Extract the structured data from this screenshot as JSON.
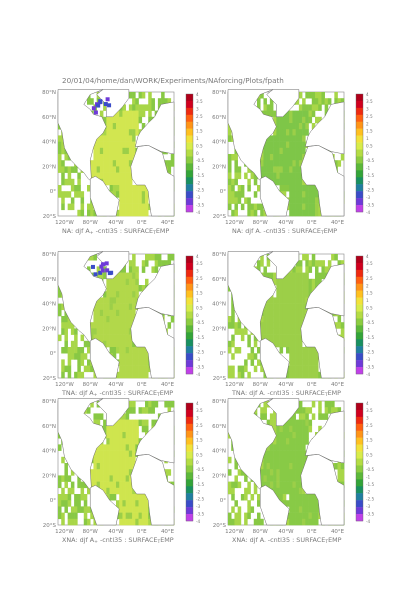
{
  "header": {
    "path": "20/01/04/home/dan/WORK/Experiments/NAforcing/Plots/fpath"
  },
  "axes": {
    "lat_labels": [
      "80°N",
      "60°N",
      "40°N",
      "20°N",
      "0°",
      "20°S"
    ],
    "lon_labels": [
      "120°W",
      "80°W",
      "40°W",
      "0°E",
      "40°E"
    ]
  },
  "colorbar": {
    "ticks": [
      "4",
      "3.5",
      "3",
      "2.5",
      "2",
      "1.5",
      "1",
      "0.5",
      "0",
      "-0.5",
      "-1",
      "-1.5",
      "-2",
      "-2.5",
      "-3",
      "-3.5",
      "-4"
    ],
    "colors": [
      "#b0001a",
      "#d0001e",
      "#ee2a10",
      "#ff6010",
      "#ff9418",
      "#ffc020",
      "#f2e23a",
      "#d8ec4a",
      "#b4dc44",
      "#8ccc40",
      "#5cb83a",
      "#33a438",
      "#189060",
      "#207ea0",
      "#3a4cc8",
      "#6e3ad8",
      "#c040e8"
    ]
  },
  "panels": [
    {
      "prefix": "NA:",
      "A_sub": "+",
      "rest": "-cntl35 : SURFACE",
      "sub2": "T",
      "tail": "EMP",
      "tint": "#d2e650"
    },
    {
      "prefix": "NA:",
      "A_sub": "-",
      "rest": "-cntl35 : SURFACE",
      "sub2": "T",
      "tail": "EMP",
      "tint": "#7ec648"
    },
    {
      "prefix": "TNA:",
      "A_sub": "+",
      "rest": "-cntl35 : SURFACE",
      "sub2": "T",
      "tail": "EMP",
      "tint": "#b2d84a"
    },
    {
      "prefix": "TNA:",
      "A_sub": "-",
      "rest": "-cntl35 : SURFACE",
      "sub2": "T",
      "tail": "EMP",
      "tint": "#9ccf48"
    },
    {
      "prefix": "XNA:",
      "A_sub": "+",
      "rest": "-cntl35 : SURFACE",
      "sub2": "T",
      "tail": "EMP",
      "tint": "#cfe54e"
    },
    {
      "prefix": "XNA:",
      "A_sub": "-",
      "rest": "-cntl35 : SURFACE",
      "sub2": "T",
      "tail": "EMP",
      "tint": "#88ca46"
    }
  ]
}
